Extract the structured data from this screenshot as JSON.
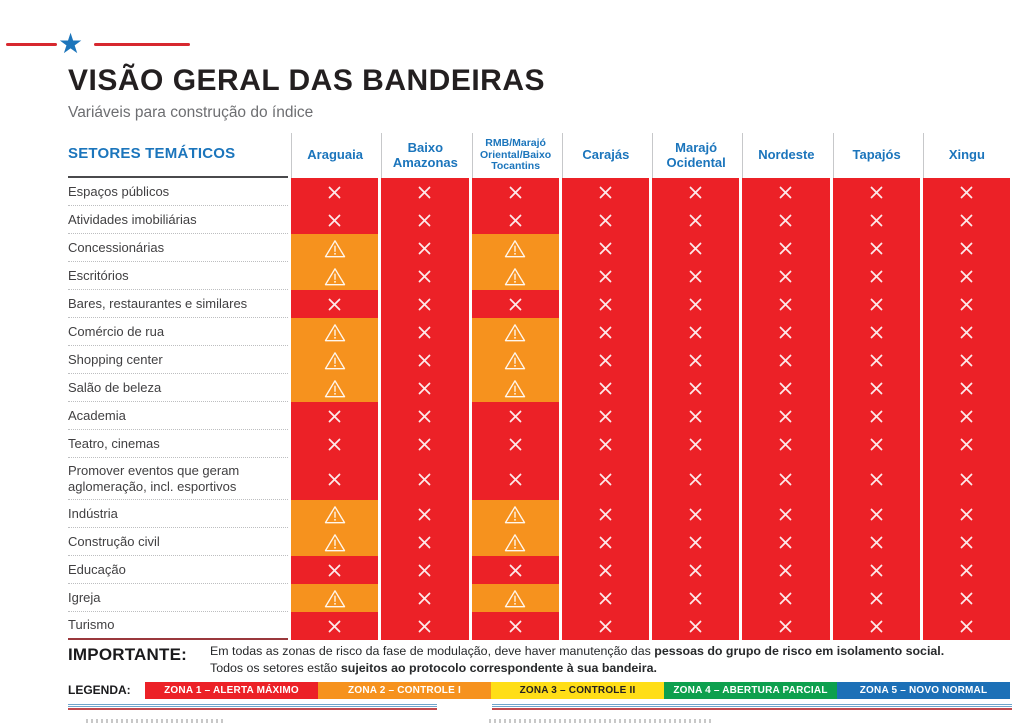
{
  "page": {
    "title": "VISÃO GERAL DAS BANDEIRAS",
    "subtitle": "Variáveis para construção do índice"
  },
  "colors": {
    "header_blue": "#1B75BC",
    "decor_red": "#D7282F",
    "red": "#EC2127",
    "orange": "#F6921E",
    "yellow": "#FFDE17",
    "green": "#0DA04E",
    "blue": "#1C70B7"
  },
  "table": {
    "label_header": "SETORES TEMÁTICOS",
    "columns": [
      "Araguaia",
      "Baixo Amazonas",
      "RMB/Marajó Oriental/Baixo Tocantins",
      "Carajás",
      "Marajó Ocidental",
      "Nordeste",
      "Tapajós",
      "Xingu"
    ],
    "cell_symbols": {
      "x": {
        "name": "restricted",
        "icon": "cross-icon",
        "color": "#EC2127"
      },
      "w": {
        "name": "warning",
        "icon": "warning-triangle-icon",
        "color": "#F6921E"
      }
    },
    "rows": [
      {
        "label": "Espaços públicos",
        "cells": [
          "x",
          "x",
          "x",
          "x",
          "x",
          "x",
          "x",
          "x"
        ]
      },
      {
        "label": "Atividades imobiliárias",
        "cells": [
          "x",
          "x",
          "x",
          "x",
          "x",
          "x",
          "x",
          "x"
        ]
      },
      {
        "label": "Concessionárias",
        "cells": [
          "w",
          "x",
          "w",
          "x",
          "x",
          "x",
          "x",
          "x"
        ]
      },
      {
        "label": "Escritórios",
        "cells": [
          "w",
          "x",
          "w",
          "x",
          "x",
          "x",
          "x",
          "x"
        ]
      },
      {
        "label": "Bares, restaurantes e similares",
        "cells": [
          "x",
          "x",
          "x",
          "x",
          "x",
          "x",
          "x",
          "x"
        ]
      },
      {
        "label": "Comércio de rua",
        "cells": [
          "w",
          "x",
          "w",
          "x",
          "x",
          "x",
          "x",
          "x"
        ]
      },
      {
        "label": "Shopping center",
        "cells": [
          "w",
          "x",
          "w",
          "x",
          "x",
          "x",
          "x",
          "x"
        ]
      },
      {
        "label": "Salão de beleza",
        "cells": [
          "w",
          "x",
          "w",
          "x",
          "x",
          "x",
          "x",
          "x"
        ]
      },
      {
        "label": "Academia",
        "cells": [
          "x",
          "x",
          "x",
          "x",
          "x",
          "x",
          "x",
          "x"
        ]
      },
      {
        "label": "Teatro, cinemas",
        "cells": [
          "x",
          "x",
          "x",
          "x",
          "x",
          "x",
          "x",
          "x"
        ]
      },
      {
        "label": "Promover eventos que geram aglomeração, incl. esportivos",
        "cells": [
          "x",
          "x",
          "x",
          "x",
          "x",
          "x",
          "x",
          "x"
        ]
      },
      {
        "label": "Indústria",
        "cells": [
          "w",
          "x",
          "w",
          "x",
          "x",
          "x",
          "x",
          "x"
        ]
      },
      {
        "label": "Construção civil",
        "cells": [
          "w",
          "x",
          "w",
          "x",
          "x",
          "x",
          "x",
          "x"
        ]
      },
      {
        "label": "Educação",
        "cells": [
          "x",
          "x",
          "x",
          "x",
          "x",
          "x",
          "x",
          "x"
        ]
      },
      {
        "label": "Igreja",
        "cells": [
          "w",
          "x",
          "w",
          "x",
          "x",
          "x",
          "x",
          "x"
        ]
      },
      {
        "label": "Turismo",
        "cells": [
          "x",
          "x",
          "x",
          "x",
          "x",
          "x",
          "x",
          "x"
        ]
      }
    ]
  },
  "importante": {
    "label": "IMPORTANTE:",
    "lines": [
      [
        {
          "text": "Em todas as zonas de risco da fase de modulação, deve haver manutenção das ",
          "bold": false
        },
        {
          "text": "pessoas do grupo de risco em isolamento social.",
          "bold": true
        }
      ],
      [
        {
          "text": "Todos os setores estão ",
          "bold": false
        },
        {
          "text": "sujeitos ao protocolo correspondente à sua bandeira.",
          "bold": true
        }
      ]
    ]
  },
  "legend": {
    "label": "LEGENDA:",
    "zones": [
      {
        "label": "ZONA 1 – ALERTA MÁXIMO",
        "color": "#EC2127",
        "text_color": "#FFFFFF"
      },
      {
        "label": "ZONA 2 – CONTROLE I",
        "color": "#F6921E",
        "text_color": "#FFFFFF"
      },
      {
        "label": "ZONA 3 – CONTROLE II",
        "color": "#FFDE17",
        "text_color": "#231F20"
      },
      {
        "label": "ZONA 4 – ABERTURA PARCIAL",
        "color": "#0DA04E",
        "text_color": "#FFFFFF"
      },
      {
        "label": "ZONA 5 – NOVO NORMAL",
        "color": "#1C70B7",
        "text_color": "#FFFFFF"
      }
    ]
  }
}
